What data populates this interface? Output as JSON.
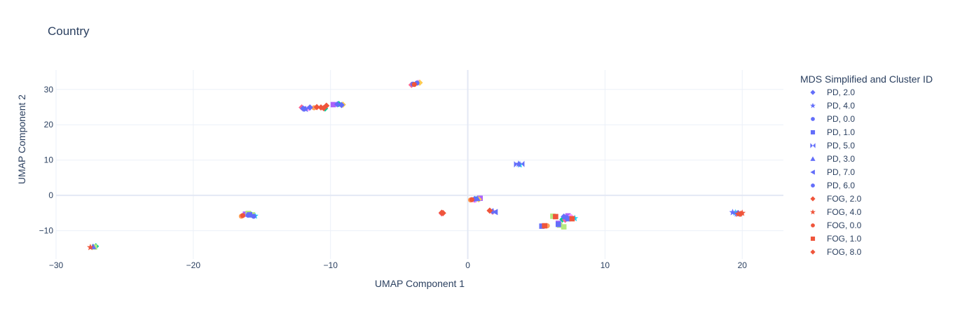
{
  "chart_data": {
    "type": "scatter",
    "title": "Country",
    "xlabel": "UMAP Component 1",
    "ylabel": "UMAP Component 2",
    "xlim": [
      -30,
      23
    ],
    "ylim": [
      -18,
      35.5
    ],
    "xticks": [
      -30,
      -20,
      -10,
      0,
      10,
      20
    ],
    "xtick_labels": [
      "−30",
      "−20",
      "−10",
      "0",
      "10",
      "20"
    ],
    "yticks": [
      -10,
      0,
      10,
      20,
      30
    ],
    "ytick_labels": [
      "−10",
      "0",
      "10",
      "20",
      "30"
    ],
    "grid": true,
    "legend_title": "MDS Simplified and Cluster ID",
    "legend_position": "right",
    "colors": {
      "pd": "#636efa",
      "fog": "#ef553b",
      "grid": "#ebf0f8",
      "zeroline": "#e3e8f4",
      "text": "#2a3f5f"
    },
    "series": [
      {
        "name": "PD, 2.0",
        "symbol": "diamond",
        "color": "#636efa",
        "points": [
          [
            -12,
            24.6
          ],
          [
            -11.5,
            24.9
          ],
          [
            -9.5,
            25.8
          ],
          [
            -9.2,
            25.6
          ],
          [
            0.5,
            -1
          ],
          [
            7,
            -6
          ],
          [
            19.7,
            -5
          ]
        ]
      },
      {
        "name": "PD, 4.0",
        "symbol": "star",
        "color": "#636efa",
        "points": [
          [
            19.3,
            -4.8
          ],
          [
            19.6,
            -5.2
          ],
          [
            3.7,
            8.9
          ],
          [
            -11.8,
            24.4
          ]
        ]
      },
      {
        "name": "PD, 0.0",
        "symbol": "circle",
        "color": "#636efa",
        "points": [
          [
            -16,
            -5.6
          ],
          [
            -15.6,
            -5.9
          ],
          [
            -11.9,
            24.5
          ],
          [
            7.2,
            -6.3
          ]
        ]
      },
      {
        "name": "PD, 1.0",
        "symbol": "square",
        "color": "#636efa",
        "points": [
          [
            6.6,
            -8.2
          ],
          [
            7.3,
            -6.6
          ],
          [
            -15.9,
            -5.5
          ],
          [
            5.4,
            -8.7
          ]
        ]
      },
      {
        "name": "PD, 5.0",
        "symbol": "hourglass",
        "color": "#636efa",
        "points": [
          [
            3.6,
            8.8
          ],
          [
            3.9,
            8.9
          ]
        ]
      },
      {
        "name": "PD, 3.0",
        "symbol": "triangle-up",
        "color": "#636efa",
        "points": [
          [
            -27.3,
            -14.5
          ],
          [
            0.7,
            -0.9
          ]
        ]
      },
      {
        "name": "PD, 7.0",
        "symbol": "triangle-left",
        "color": "#636efa",
        "points": [
          [
            1.7,
            -4.5
          ],
          [
            2,
            -4.7
          ]
        ]
      },
      {
        "name": "PD, 6.0",
        "symbol": "circle",
        "color": "#636efa",
        "points": [
          [
            -4,
            31.5
          ],
          [
            -3.7,
            31.8
          ]
        ]
      },
      {
        "name": "FOG, 2.0",
        "symbol": "diamond",
        "color": "#ef553b",
        "points": [
          [
            -11,
            25
          ],
          [
            -10.7,
            24.9
          ],
          [
            -10.3,
            25.4
          ],
          [
            19.9,
            -5.2
          ],
          [
            -1.8,
            -5
          ]
        ]
      },
      {
        "name": "FOG, 4.0",
        "symbol": "star",
        "color": "#ef553b",
        "points": [
          [
            19.7,
            -5.3
          ],
          [
            20,
            -5
          ],
          [
            -27.5,
            -14.7
          ]
        ]
      },
      {
        "name": "FOG, 0.0",
        "symbol": "circle",
        "color": "#ef553b",
        "points": [
          [
            -16.4,
            -5.7
          ],
          [
            -3.9,
            31.4
          ],
          [
            0.3,
            -1.2
          ]
        ]
      },
      {
        "name": "FOG, 1.0",
        "symbol": "square",
        "color": "#ef553b",
        "points": [
          [
            5.6,
            -8.6
          ],
          [
            6.4,
            -6
          ],
          [
            7.6,
            -6.6
          ]
        ]
      },
      {
        "name": "FOG, 8.0",
        "symbol": "diamond",
        "color": "#ef553b",
        "points": [
          [
            -10.5,
            24.7
          ],
          [
            1.6,
            -4.3
          ],
          [
            -1.9,
            -4.9
          ]
        ]
      }
    ],
    "other_points": [
      {
        "color": "#00cc96",
        "symbol": "diamond",
        "points": [
          [
            -15.8,
            -5.4
          ],
          [
            -10.4,
            24.6
          ],
          [
            -9.4,
            25.9
          ],
          [
            0.6,
            -1.1
          ],
          [
            6.9,
            -6.8
          ],
          [
            -27.1,
            -14.4
          ]
        ]
      },
      {
        "color": "#ab63fa",
        "symbol": "square",
        "points": [
          [
            7.3,
            -5.8
          ],
          [
            6.6,
            -7.9
          ],
          [
            -9.8,
            25.7
          ],
          [
            -16.2,
            -5.3
          ],
          [
            0.9,
            -0.8
          ]
        ]
      },
      {
        "color": "#ffa15a",
        "symbol": "circle",
        "points": [
          [
            -16.5,
            -5.9
          ],
          [
            -11.2,
            24.8
          ],
          [
            0.2,
            -1.3
          ],
          [
            5.8,
            -8.6
          ]
        ]
      },
      {
        "color": "#19d3f3",
        "symbol": "star",
        "points": [
          [
            19.5,
            -4.9
          ],
          [
            3.8,
            8.7
          ],
          [
            -15.5,
            -5.8
          ],
          [
            7.8,
            -6.5
          ]
        ]
      },
      {
        "color": "#ff6692",
        "symbol": "diamond",
        "points": [
          [
            -1.9,
            -5.1
          ],
          [
            -4.1,
            31.3
          ],
          [
            7.1,
            -6.9
          ],
          [
            -12.1,
            24.9
          ],
          [
            1.8,
            -4.6
          ]
        ]
      },
      {
        "color": "#b6e880",
        "symbol": "square",
        "points": [
          [
            7,
            -8.9
          ],
          [
            6.7,
            -8.4
          ],
          [
            6.2,
            -5.9
          ],
          [
            -16,
            -5.1
          ],
          [
            -15.7,
            -5.5
          ],
          [
            -27.2,
            -14.6
          ]
        ]
      },
      {
        "color": "#ff97ff",
        "symbol": "circle",
        "points": [
          [
            -3.6,
            32
          ],
          [
            -11.6,
            24.6
          ],
          [
            7.5,
            -6
          ],
          [
            0.5,
            -1.4
          ]
        ]
      },
      {
        "color": "#fecb52",
        "symbol": "diamond",
        "points": [
          [
            -3.5,
            31.9
          ],
          [
            -9.1,
            25.7
          ],
          [
            0.8,
            -1.1
          ]
        ]
      }
    ]
  }
}
